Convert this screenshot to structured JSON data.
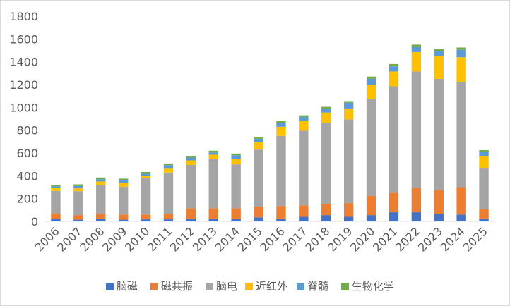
{
  "chart_data": {
    "type": "bar",
    "stacked": true,
    "title": "",
    "xlabel": "",
    "ylabel": "",
    "ylim": [
      0,
      1800
    ],
    "yticks": [
      0,
      200,
      400,
      600,
      800,
      1000,
      1200,
      1400,
      1600,
      1800
    ],
    "grid": false,
    "legend_position": "bottom",
    "categories": [
      "2006",
      "2007",
      "2008",
      "2009",
      "2010",
      "2011",
      "2012",
      "2013",
      "2014",
      "2015",
      "2016",
      "2017",
      "2018",
      "2019",
      "2020",
      "2021",
      "2022",
      "2023",
      "2024",
      "2025"
    ],
    "series": [
      {
        "name": "脑磁",
        "color": "#4472c4",
        "values": [
          22,
          15,
          20,
          15,
          18,
          18,
          25,
          25,
          25,
          35,
          25,
          40,
          55,
          40,
          55,
          80,
          80,
          65,
          60,
          25
        ]
      },
      {
        "name": "磁共振",
        "color": "#ed7d31",
        "values": [
          45,
          40,
          45,
          45,
          40,
          50,
          90,
          90,
          90,
          95,
          110,
          100,
          100,
          120,
          170,
          170,
          215,
          210,
          240,
          80
        ]
      },
      {
        "name": "脑电",
        "color": "#a5a5a5",
        "values": [
          200,
          210,
          255,
          245,
          320,
          360,
          380,
          430,
          385,
          500,
          615,
          655,
          710,
          735,
          850,
          935,
          1020,
          975,
          925,
          365
        ]
      },
      {
        "name": "近红外",
        "color": "#ffc000",
        "values": [
          25,
          25,
          30,
          35,
          20,
          40,
          40,
          40,
          50,
          65,
          80,
          85,
          90,
          95,
          125,
          130,
          170,
          200,
          215,
          105
        ]
      },
      {
        "name": "脊髓",
        "color": "#5b9bd5",
        "values": [
          15,
          20,
          20,
          20,
          20,
          25,
          25,
          20,
          30,
          30,
          35,
          35,
          35,
          50,
          50,
          45,
          45,
          45,
          65,
          35
        ]
      },
      {
        "name": "生物化学",
        "color": "#70ad47",
        "values": [
          10,
          15,
          15,
          15,
          15,
          15,
          15,
          15,
          15,
          15,
          15,
          15,
          15,
          15,
          20,
          20,
          20,
          15,
          20,
          15
        ]
      }
    ]
  }
}
